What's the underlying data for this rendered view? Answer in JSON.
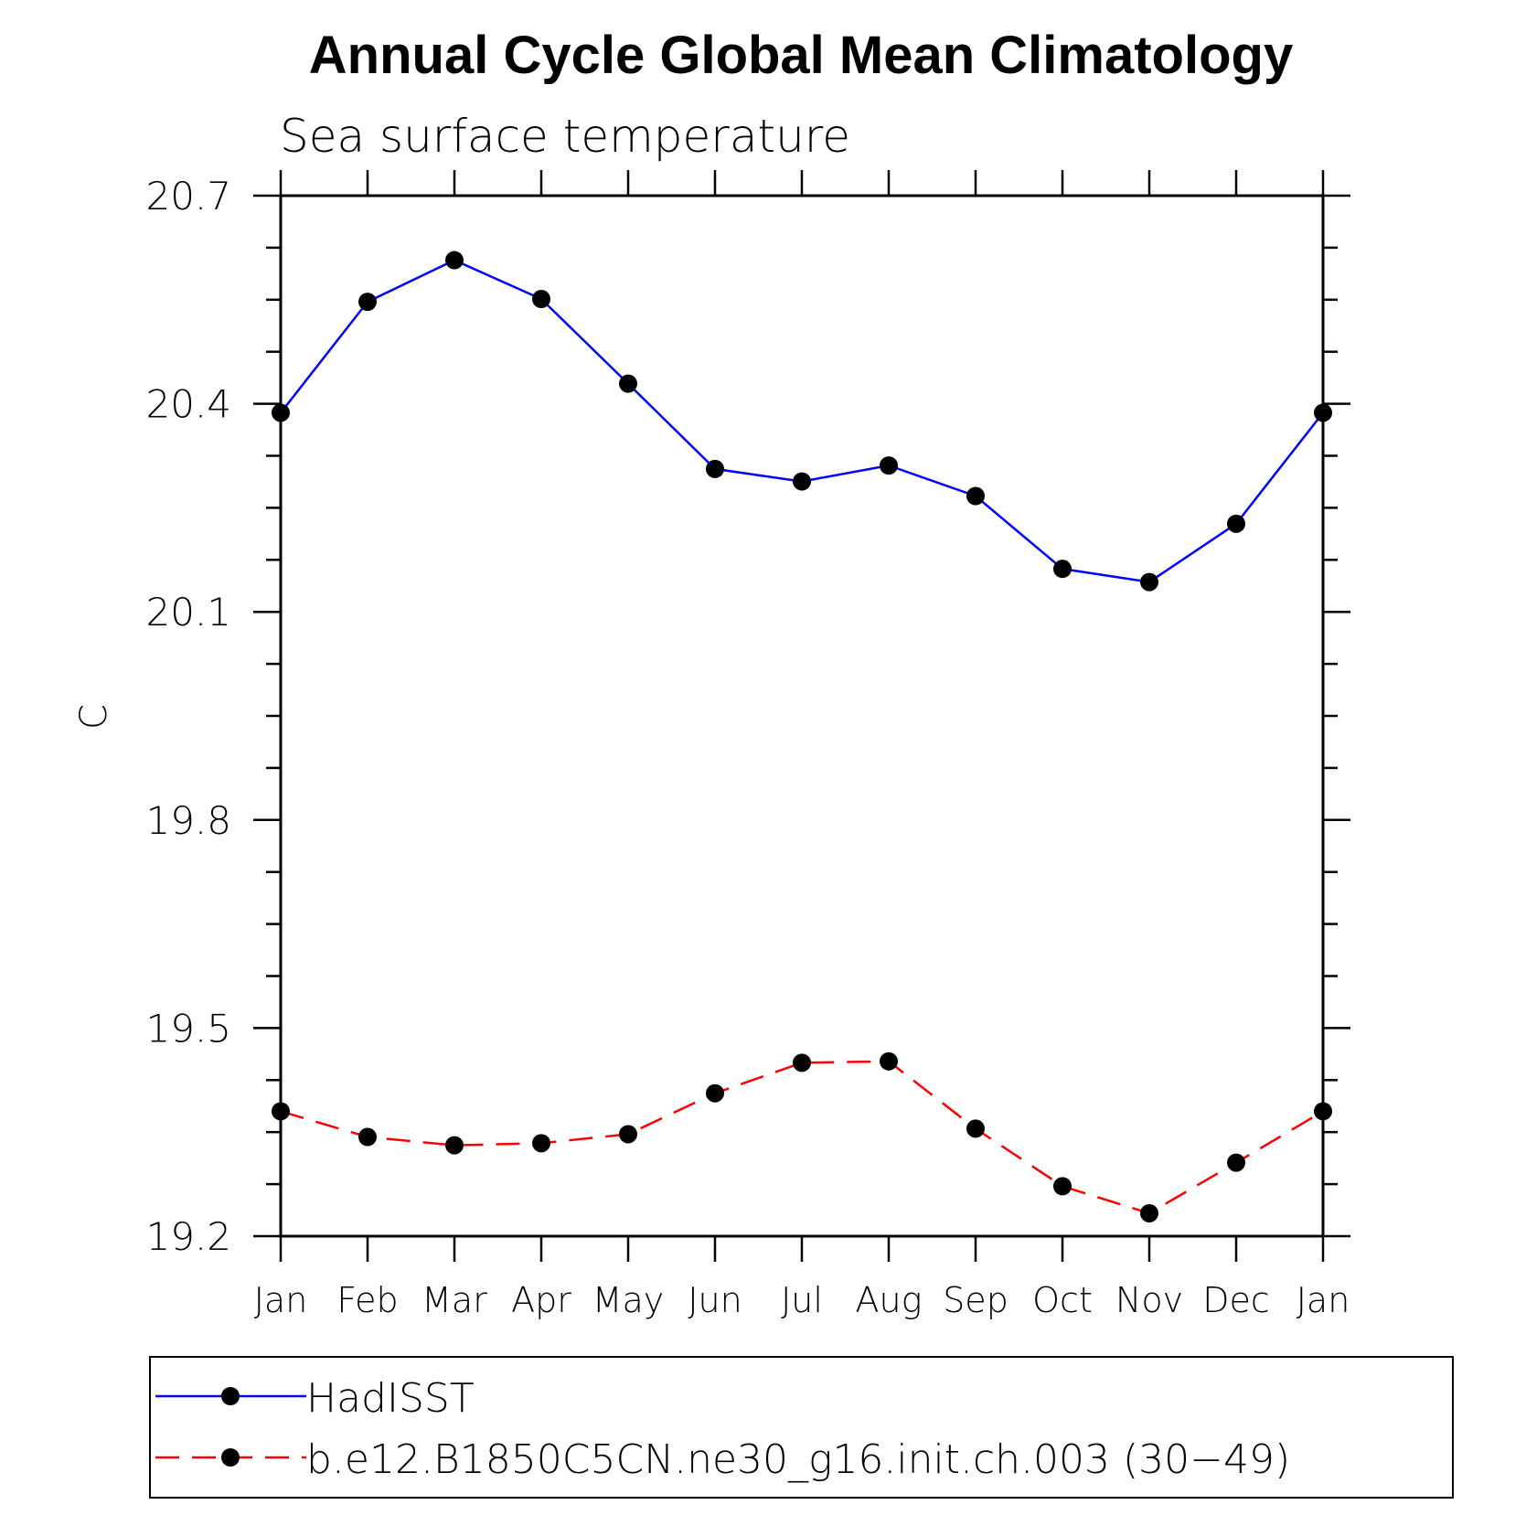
{
  "chart_data": {
    "type": "line",
    "title": "Annual Cycle Global Mean Climatology",
    "subtitle": "Sea surface temperature",
    "xlabel": "",
    "ylabel": "C",
    "categories": [
      "Jan",
      "Feb",
      "Mar",
      "Apr",
      "May",
      "Jun",
      "Jul",
      "Aug",
      "Sep",
      "Oct",
      "Nov",
      "Dec",
      "Jan"
    ],
    "ylim": [
      19.2,
      20.7
    ],
    "yticks": [
      "20.7",
      "20.4",
      "20.1",
      "19.8",
      "19.5",
      "19.2"
    ],
    "grid": false,
    "legend_position": "bottom",
    "series": [
      {
        "name": "HadISST",
        "color": "#0000ff",
        "line_style": "solid",
        "marker": "filled-circle",
        "values": [
          20.387,
          20.547,
          20.607,
          20.551,
          20.429,
          20.306,
          20.288,
          20.311,
          20.267,
          20.162,
          20.143,
          20.227,
          20.387
        ]
      },
      {
        "name": "b.e12.B1850C5CN.ne30_g16.init.ch.003 (30−49)",
        "color": "#ff0000",
        "line_style": "dashed",
        "marker": "filled-circle",
        "values": [
          19.38,
          19.343,
          19.331,
          19.334,
          19.347,
          19.406,
          19.45,
          19.452,
          19.355,
          19.272,
          19.233,
          19.306,
          19.38
        ]
      }
    ]
  }
}
